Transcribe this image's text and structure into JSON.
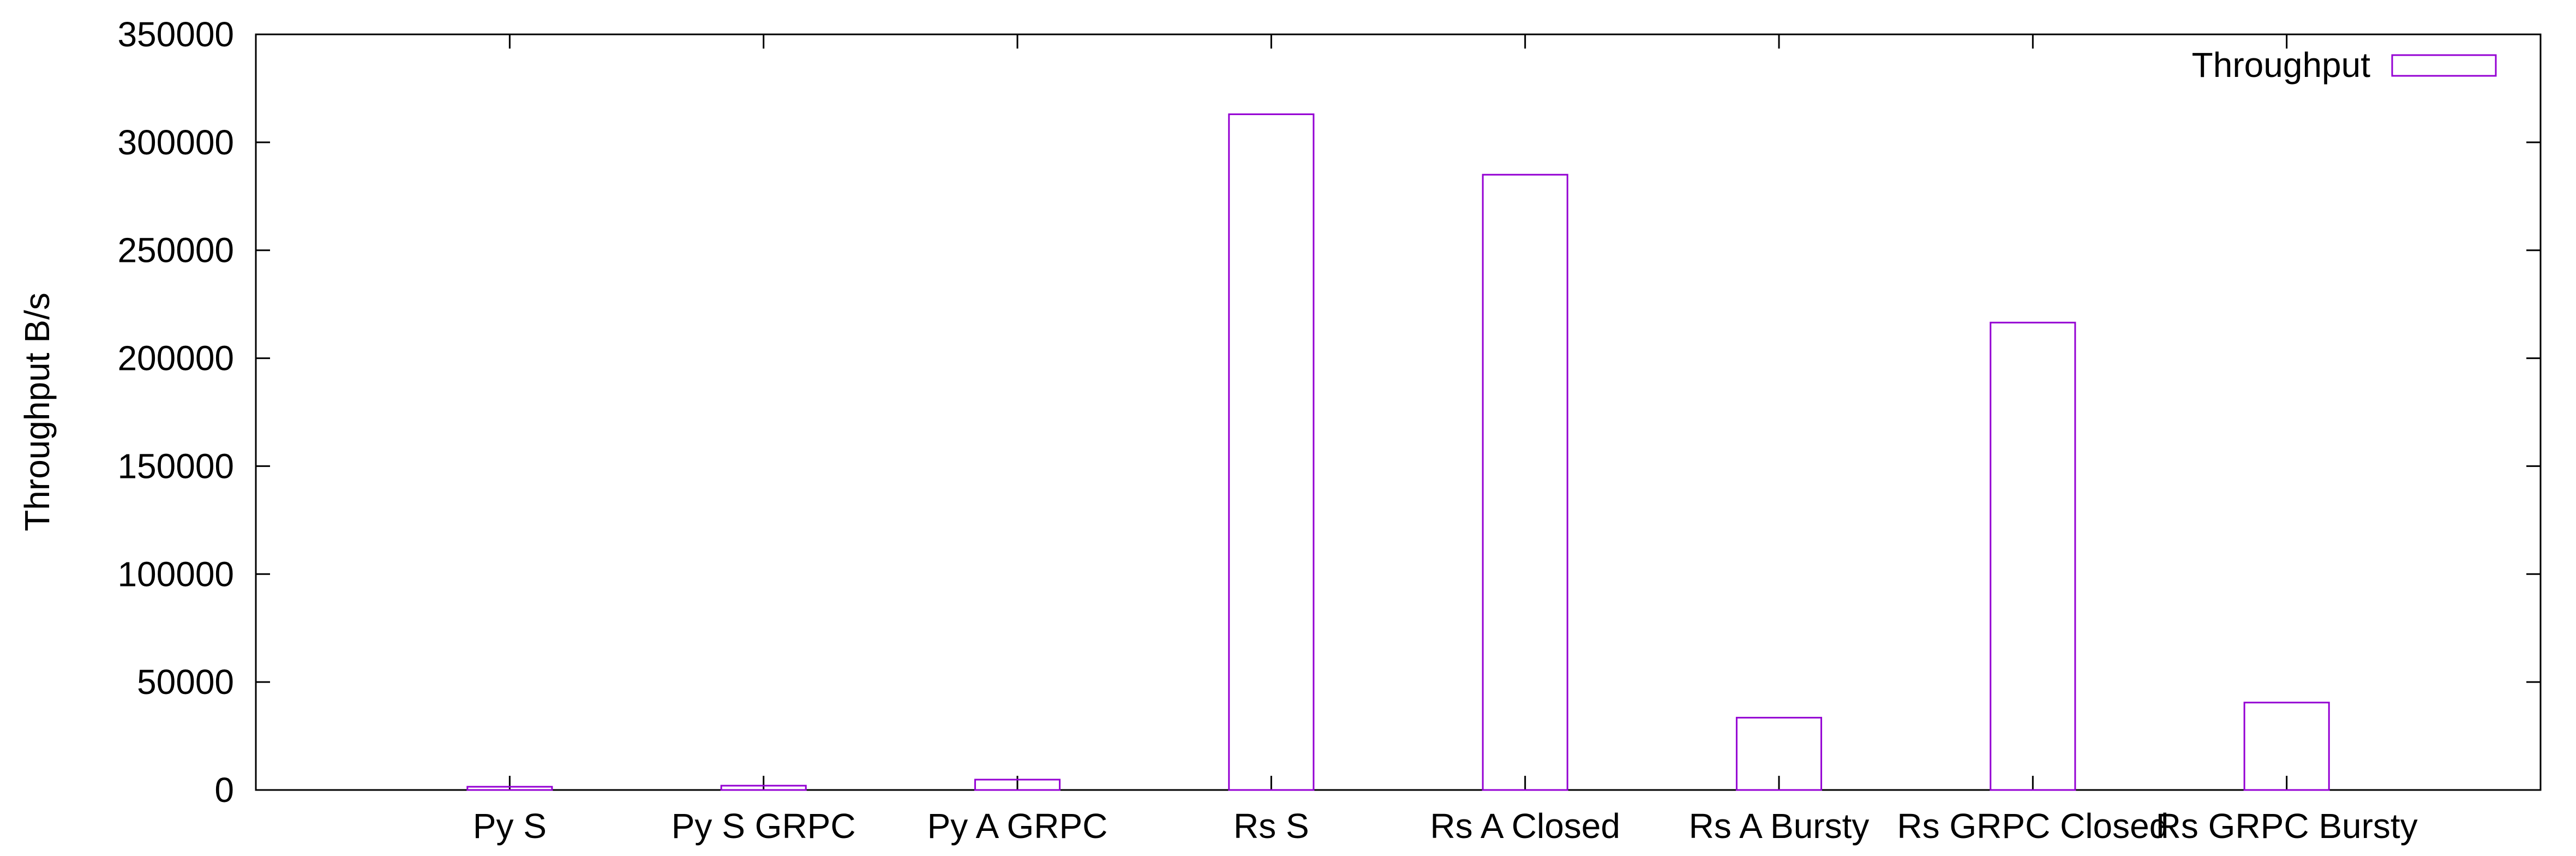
{
  "chart_data": {
    "type": "bar",
    "title": "",
    "xlabel": "",
    "ylabel": "Throughput B/s",
    "categories": [
      "Py S",
      "Py S GRPC",
      "Py A GRPC",
      "Rs S",
      "Rs A Closed",
      "Rs A Bursty",
      "Rs GRPC Closed",
      "Rs GRPC Bursty"
    ],
    "series": [
      {
        "name": "Throughput",
        "color": "#9400d3",
        "values": [
          1500,
          2000,
          4800,
          313000,
          285000,
          33500,
          216500,
          40500
        ]
      }
    ],
    "ylim": [
      0,
      350000
    ],
    "yticks": [
      0,
      50000,
      100000,
      150000,
      200000,
      250000,
      300000,
      350000
    ],
    "ytick_labels": [
      "0",
      "50000",
      "100000",
      "150000",
      "200000",
      "250000",
      "300000",
      "350000"
    ],
    "grid": false,
    "legend": "top-right"
  }
}
